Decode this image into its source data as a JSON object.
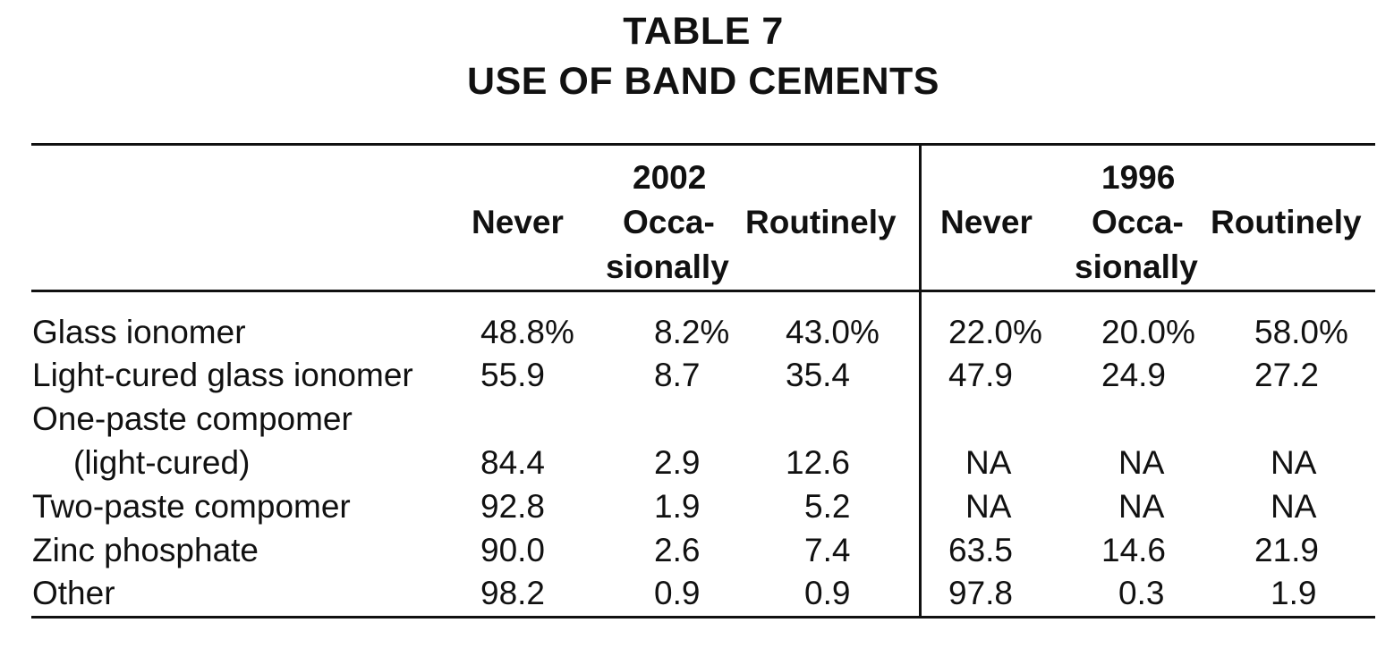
{
  "table": {
    "title": "TABLE 7",
    "subtitle": "USE OF BAND CEMENTS",
    "groups": [
      {
        "year": "2002",
        "columns": [
          {
            "line1": "Never",
            "line2": ""
          },
          {
            "line1": "Occa-",
            "line2": "sionally"
          },
          {
            "line1": "Routinely",
            "line2": ""
          }
        ]
      },
      {
        "year": "1996",
        "columns": [
          {
            "line1": "Never",
            "line2": ""
          },
          {
            "line1": "Occa-",
            "line2": "sionally"
          },
          {
            "line1": "Routinely",
            "line2": ""
          }
        ]
      }
    ],
    "rows": [
      {
        "label": "Glass ionomer",
        "label2": "",
        "values": [
          "48.8%",
          "8.2%",
          "43.0%",
          "22.0%",
          "20.0%",
          "58.0%"
        ]
      },
      {
        "label": "Light-cured glass ionomer",
        "label2": "",
        "values": [
          "55.9",
          "8.7",
          "35.4",
          "47.9",
          "24.9",
          "27.2"
        ]
      },
      {
        "label": "One-paste compomer",
        "label2": "(light-cured)",
        "values": [
          "84.4",
          "2.9",
          "12.6",
          "NA",
          "NA",
          "NA"
        ]
      },
      {
        "label": "Two-paste compomer",
        "label2": "",
        "values": [
          "92.8",
          "1.9",
          "5.2",
          "NA",
          "NA",
          "NA"
        ]
      },
      {
        "label": "Zinc phosphate",
        "label2": "",
        "values": [
          "90.0",
          "2.6",
          "7.4",
          "63.5",
          "14.6",
          "21.9"
        ]
      },
      {
        "label": "Other",
        "label2": "",
        "values": [
          "98.2",
          "0.9",
          "0.9",
          "97.8",
          "0.3",
          "1.9"
        ]
      }
    ]
  }
}
